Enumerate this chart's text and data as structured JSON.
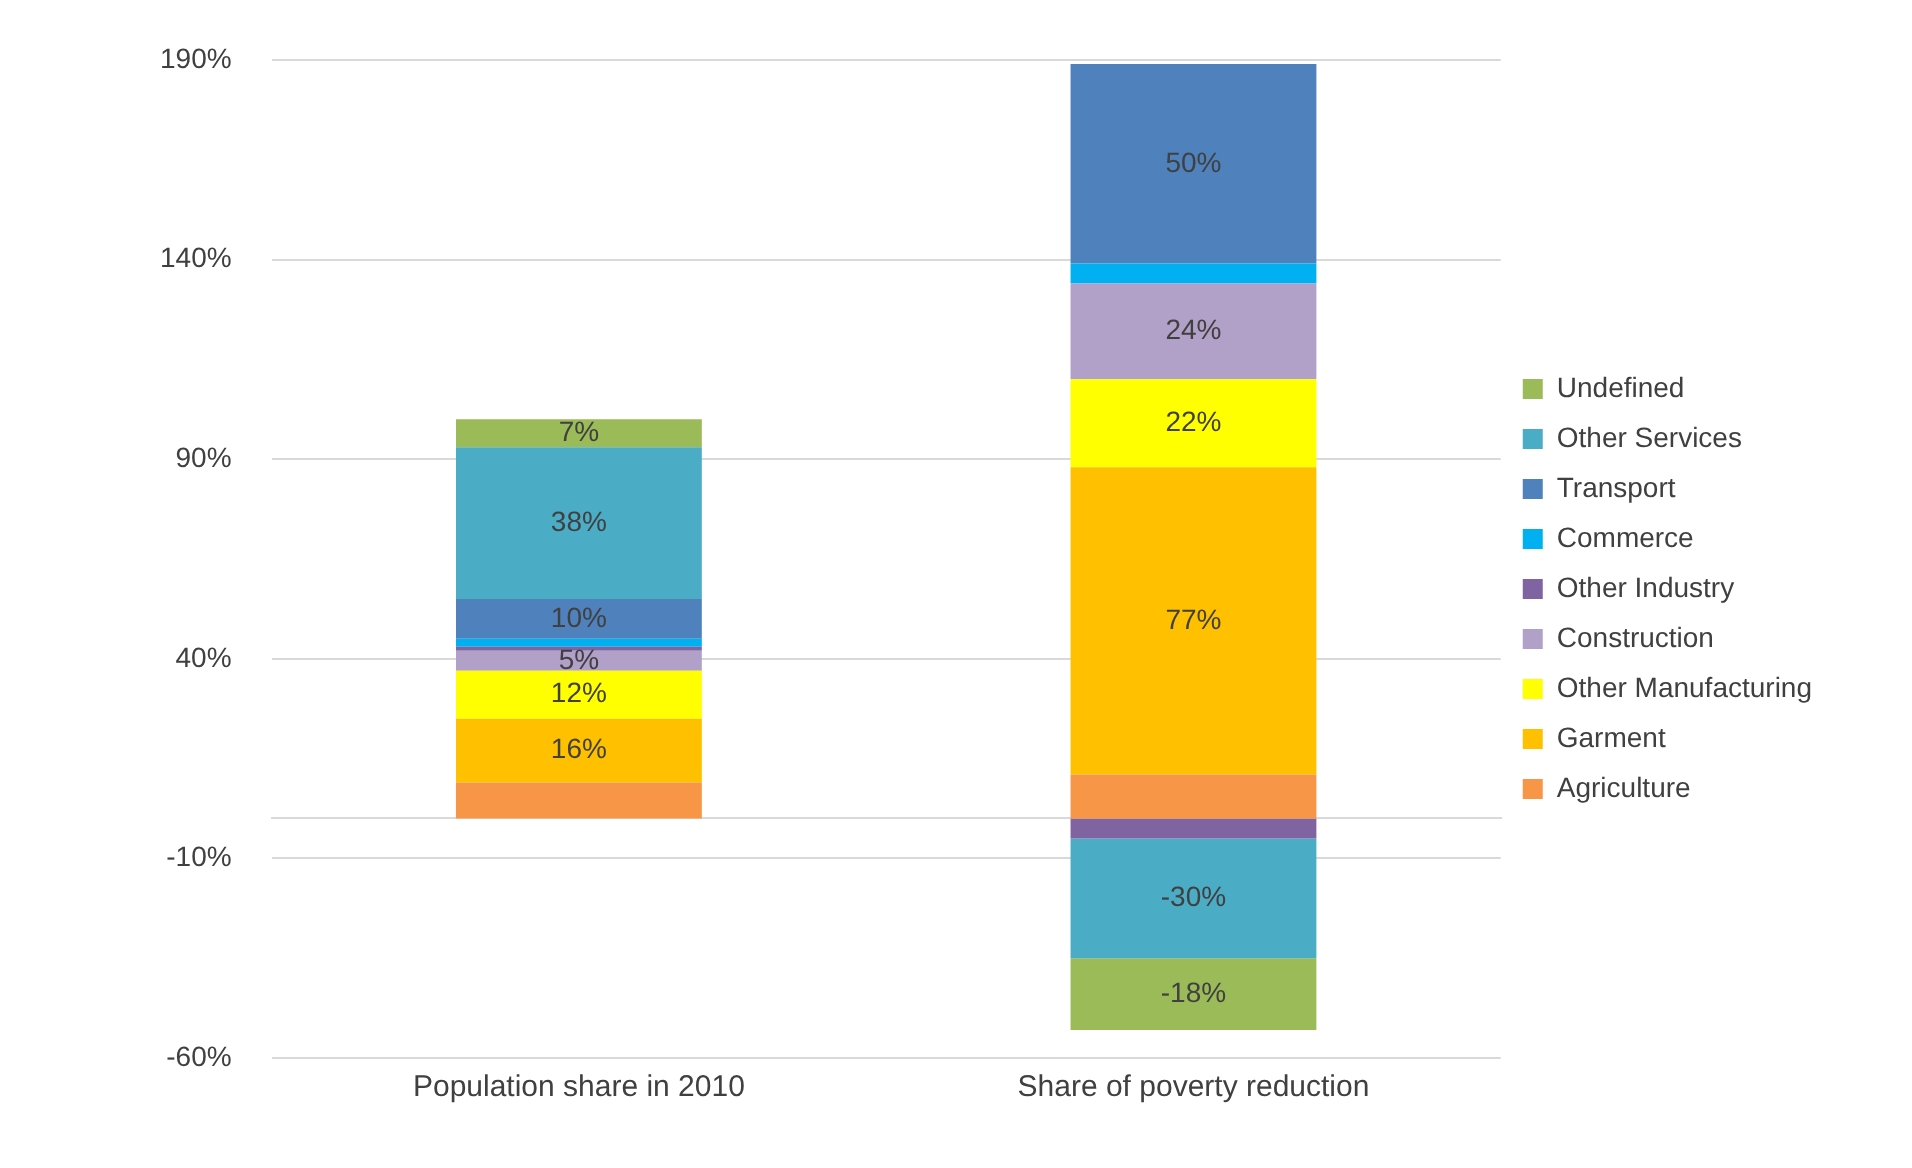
{
  "chart_data": {
    "type": "bar",
    "stacked": true,
    "categories": [
      "Population share in 2010",
      "Share of poverty reduction"
    ],
    "series": [
      {
        "name": "Agriculture",
        "color": "#f79646",
        "values": [
          9,
          11
        ],
        "value_labels": [
          null,
          null
        ]
      },
      {
        "name": "Garment",
        "color": "#ffc000",
        "values": [
          16,
          77
        ],
        "value_labels": [
          "16%",
          "77%"
        ]
      },
      {
        "name": "Other Manufacturing",
        "color": "#ffff00",
        "values": [
          12,
          22
        ],
        "value_labels": [
          "12%",
          "22%"
        ]
      },
      {
        "name": "Construction",
        "color": "#b1a0c7",
        "values": [
          5,
          24
        ],
        "value_labels": [
          "5%",
          "24%"
        ]
      },
      {
        "name": "Other Industry",
        "color": "#8064a2",
        "values": [
          1,
          -5
        ],
        "value_labels": [
          null,
          null
        ]
      },
      {
        "name": "Commerce",
        "color": "#00b0f0",
        "values": [
          2,
          5
        ],
        "value_labels": [
          null,
          null
        ]
      },
      {
        "name": "Transport",
        "color": "#4f81bd",
        "values": [
          10,
          50
        ],
        "value_labels": [
          "10%",
          "50%"
        ]
      },
      {
        "name": "Other Services",
        "color": "#4bacc6",
        "values": [
          38,
          -30
        ],
        "value_labels": [
          "38%",
          "-30%"
        ]
      },
      {
        "name": "Undefined",
        "color": "#9bbb59",
        "values": [
          7,
          -18
        ],
        "value_labels": [
          "7%",
          "-18%"
        ]
      }
    ],
    "ylim": [
      -60,
      190
    ],
    "yticks": [
      {
        "value": -60,
        "label": "-60%"
      },
      {
        "value": -10,
        "label": "-10%"
      },
      {
        "value": 40,
        "label": "40%"
      },
      {
        "value": 90,
        "label": "90%"
      },
      {
        "value": 140,
        "label": "140%"
      },
      {
        "value": 190,
        "label": "190%"
      }
    ],
    "grid": "y",
    "legend": "right"
  }
}
